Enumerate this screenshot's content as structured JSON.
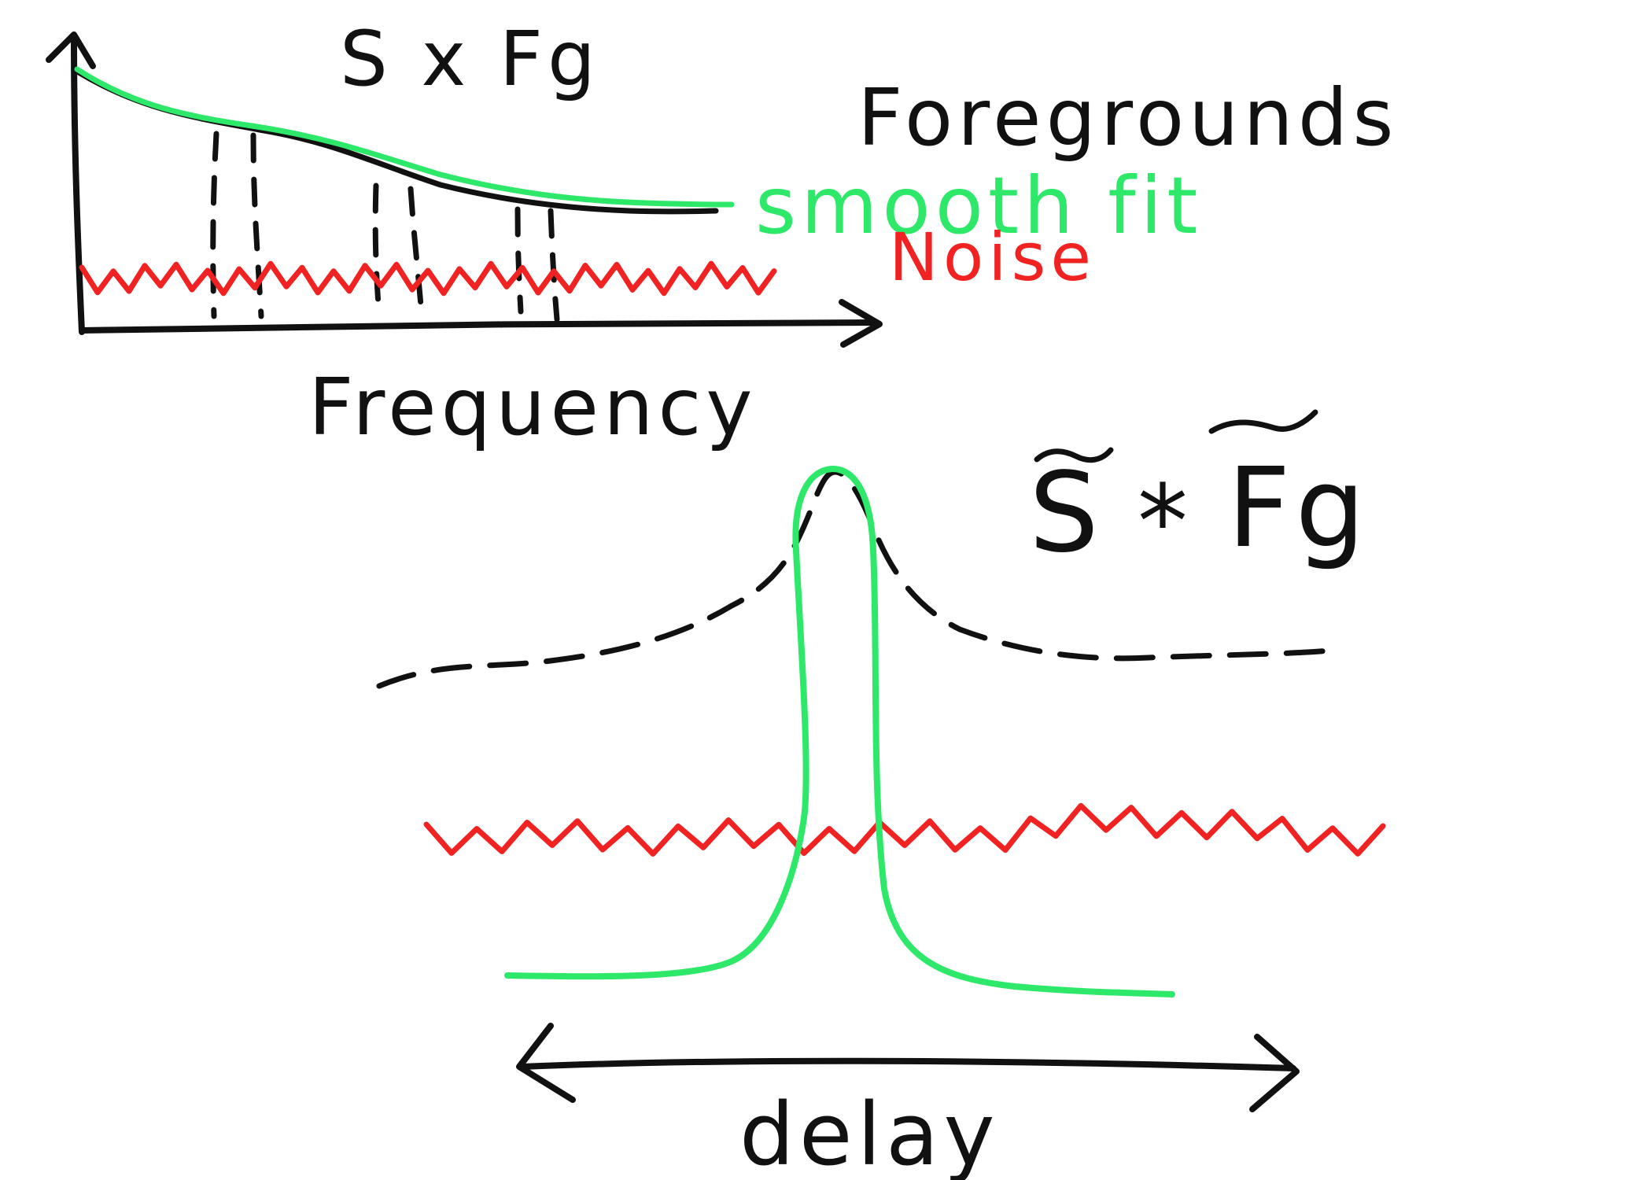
{
  "top_panel": {
    "title": "S x Fg",
    "x_axis_label": "Frequency"
  },
  "legend": {
    "foregrounds_label": "Foregrounds",
    "smooth_fit_label": "smooth fit",
    "noise_label": "Noise"
  },
  "bottom_panel": {
    "title_s": "S",
    "title_op": "*",
    "title_fg": "Fg",
    "x_axis_label": "delay"
  },
  "colors": {
    "ink": "#111111",
    "smooth_fit": "#2ee86a",
    "noise": "#f02222"
  }
}
